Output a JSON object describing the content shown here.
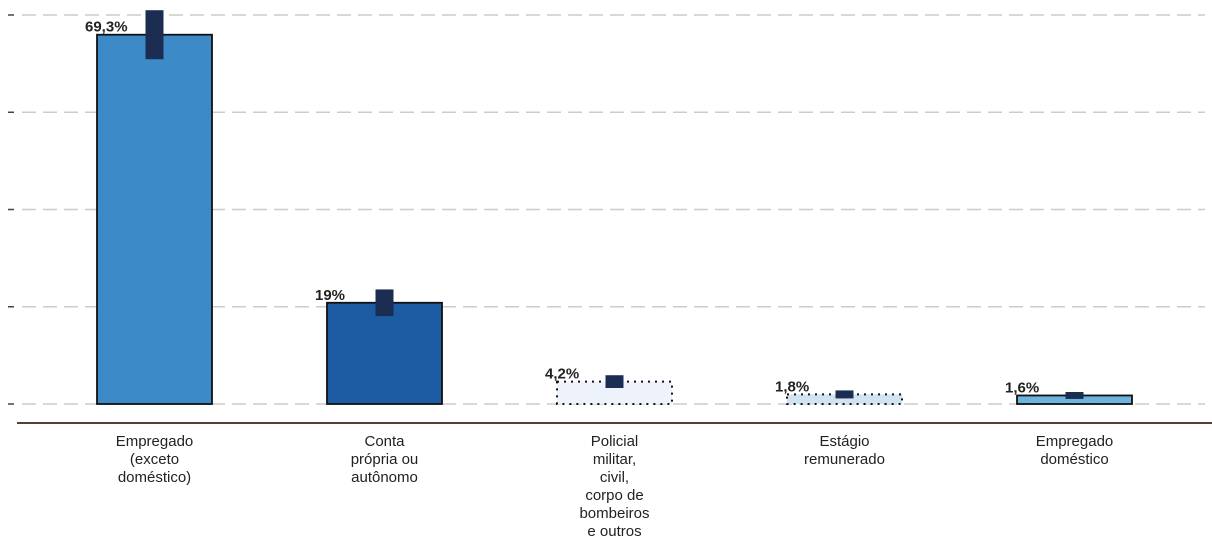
{
  "chart_data": {
    "type": "bar",
    "categories": [
      "Empregado\n(exceto\ndoméstico)",
      "Conta\nprópria ou\nautônomo",
      "Policial\nmilitar,\ncivil,\ncorpo de\nbombeiros\ne outros",
      "Estágio\nremunerado",
      "Empregado\ndoméstico"
    ],
    "values": [
      69.3,
      19,
      4.2,
      1.8,
      1.6
    ],
    "value_labels": [
      "69,3%",
      "19%",
      "4,2%",
      "1,8%",
      "1,6%"
    ],
    "errors": [
      4.6,
      2.5,
      1.2,
      0.75,
      0.65
    ],
    "colors": [
      "#3d8ac8",
      "#1b5ca3",
      "#eef3fb",
      "#cfe3f0",
      "#6cb4e0"
    ],
    "borders": [
      "solid",
      "solid",
      "dotted",
      "dotted",
      "solid"
    ],
    "error_color": "#1c2d52",
    "ylim": [
      0,
      73
    ],
    "yticks": [
      0,
      18.25,
      36.5,
      54.75,
      73
    ],
    "grid": true
  }
}
